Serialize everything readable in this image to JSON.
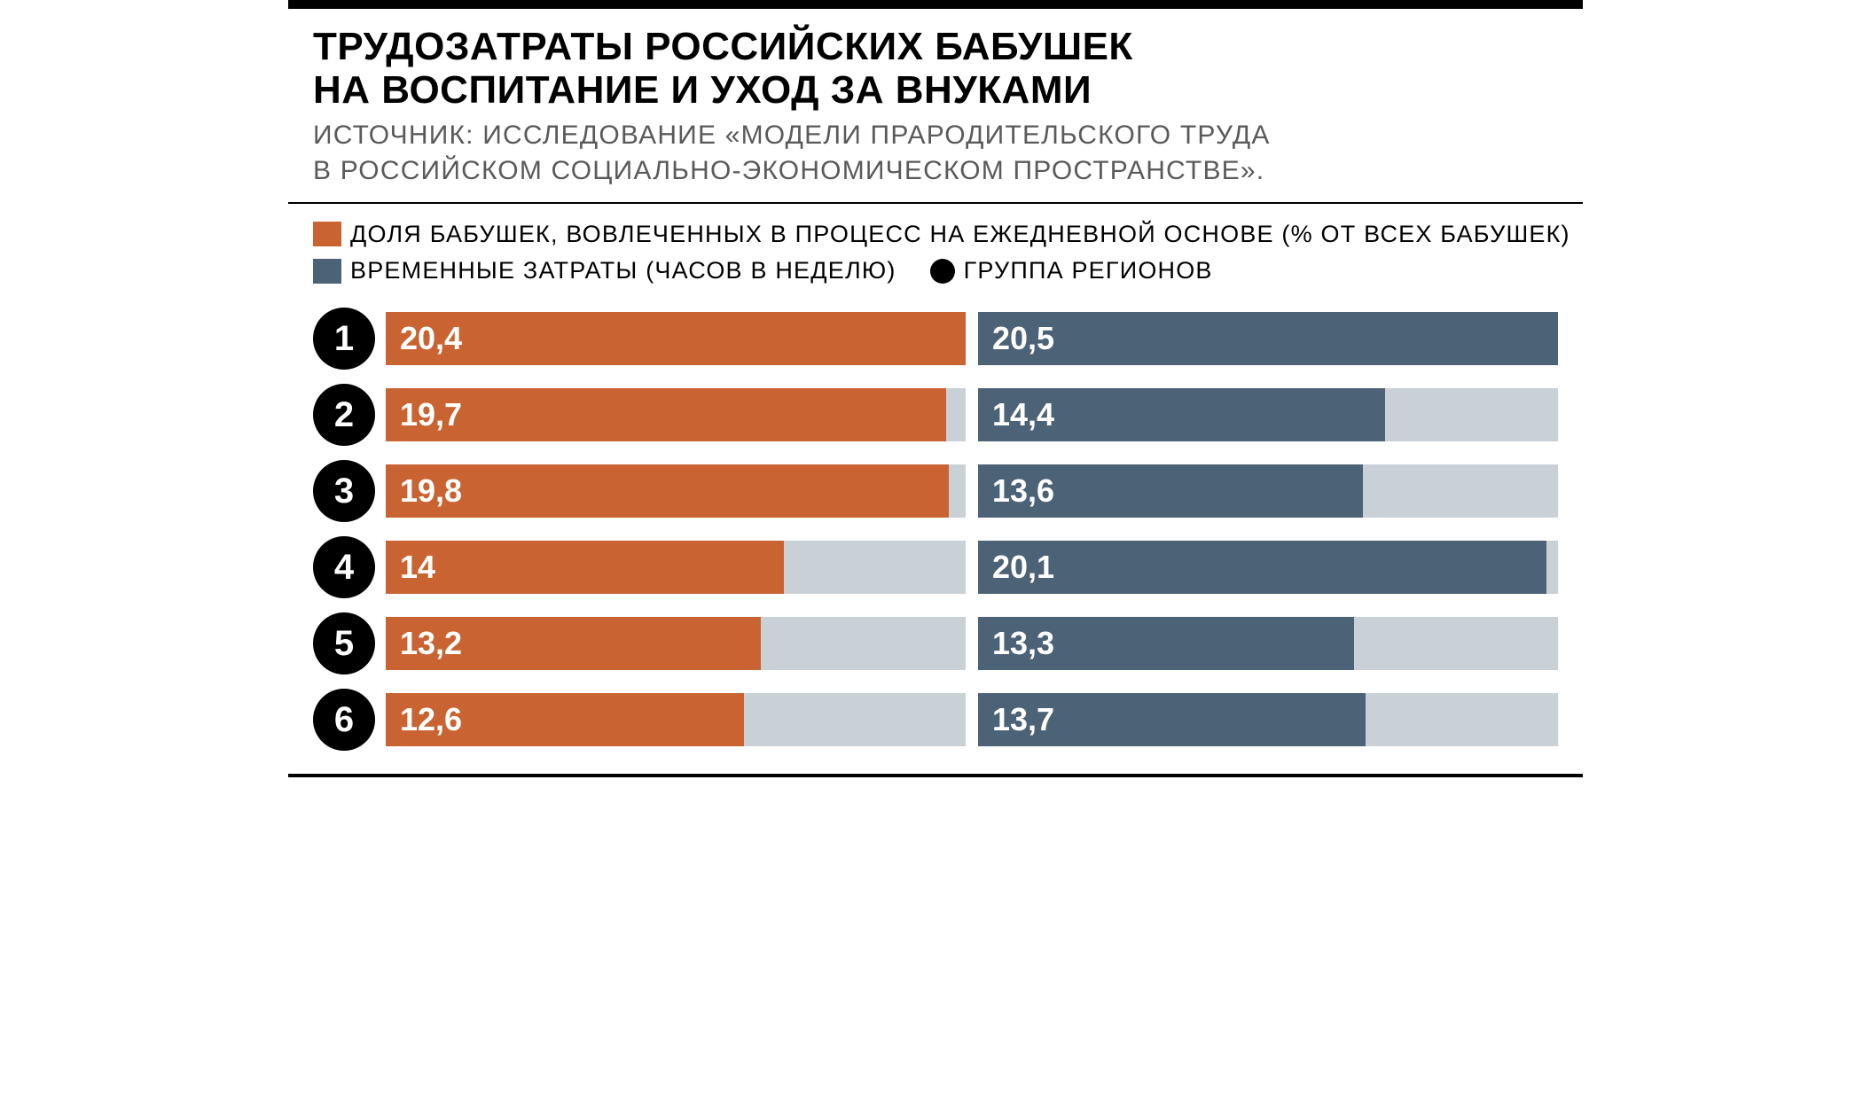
{
  "chart": {
    "type": "bar",
    "title_line1": "ТРУДОЗАТРАТЫ РОССИЙСКИХ БАБУШЕК",
    "title_line2": "НА ВОСПИТАНИЕ И УХОД ЗА ВНУКАМИ",
    "source_line1": "ИСТОЧНИК:  ИССЛЕДОВАНИЕ «МОДЕЛИ ПРАРОДИТЕЛЬСКОГО ТРУДА",
    "source_line2": "В РОССИЙСКОМ СОЦИАЛЬНО-ЭКОНОМИЧЕСКОМ ПРОСТРАНСТВЕ».",
    "title_fontsize": 44,
    "source_fontsize": 30,
    "source_color": "#5a5a5a",
    "legend": {
      "fontsize": 27,
      "item1_label": "ДОЛЯ БАБУШЕК, ВОВЛЕЧЕННЫХ В ПРОЦЕСС НА ЕЖЕДНЕВНОЙ ОСНОВЕ (% ОТ ВСЕХ БАБУШЕК)",
      "item1_color": "#c96432",
      "item2_label": "ВРЕМЕННЫЕ ЗАТРАТЫ (ЧАСОВ В НЕДЕЛЮ)",
      "item2_color": "#4c6277",
      "item3_label": "ГРУППА РЕГИОНОВ",
      "item3_color": "#000000"
    },
    "colors": {
      "track_bg": "#c9d1d6",
      "series_a": "#c96432",
      "series_b": "#4c6277",
      "badge_bg": "#000000",
      "title_color": "#000000",
      "rule_color": "#000000"
    },
    "value_fontsize": 36,
    "badge_fontsize": 40,
    "series_a_max": 20.4,
    "series_b_max": 20.5,
    "rows": [
      {
        "id": "1",
        "a": 20.4,
        "a_label": "20,4",
        "b": 20.5,
        "b_label": "20,5"
      },
      {
        "id": "2",
        "a": 19.7,
        "a_label": "19,7",
        "b": 14.4,
        "b_label": "14,4"
      },
      {
        "id": "3",
        "a": 19.8,
        "a_label": "19,8",
        "b": 13.6,
        "b_label": "13,6"
      },
      {
        "id": "4",
        "a": 14.0,
        "a_label": "14",
        "b": 20.1,
        "b_label": "20,1"
      },
      {
        "id": "5",
        "a": 13.2,
        "a_label": "13,2",
        "b": 13.3,
        "b_label": "13,3"
      },
      {
        "id": "6",
        "a": 12.6,
        "a_label": "12,6",
        "b": 13.7,
        "b_label": "13,7"
      }
    ]
  }
}
